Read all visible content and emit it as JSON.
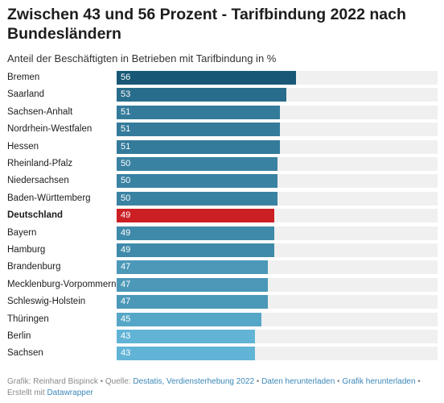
{
  "header": {
    "title": "Zwischen 43 und 56 Prozent - Tarifbindung 2022 nach Bundesländern",
    "subtitle": "Anteil der Beschäftigten in Betrieben mit Tarifbindung in %"
  },
  "footer": {
    "credit": "Grafik: Reinhard Bispinck",
    "sep1": " • ",
    "source_prefix": "Quelle: ",
    "source_link": "Destatis, Verdiensterhebung 2022",
    "sep2": " • ",
    "download_data": "Daten herunterladen",
    "sep3": " • ",
    "download_chart": "Grafik herunterladen",
    "sep4": " • ",
    "created_prefix": "Erstellt mit ",
    "created_link": "Datawrapper"
  },
  "colors": {
    "track": "#f0f0f0",
    "highlight": "#cc1f24"
  },
  "chart_data": {
    "type": "bar",
    "orientation": "horizontal",
    "title": "Zwischen 43 und 56 Prozent - Tarifbindung 2022 nach Bundesländern",
    "subtitle": "Anteil der Beschäftigten in Betrieben mit Tarifbindung in %",
    "xlim": [
      0,
      100
    ],
    "categories": [
      "Bremen",
      "Saarland",
      "Sachsen-Anhalt",
      "Nordrhein-Westfalen",
      "Hessen",
      "Rheinland-Pfalz",
      "Niedersachsen",
      "Baden-Württemberg",
      "Deutschland",
      "Bayern",
      "Hamburg",
      "Brandenburg",
      "Mecklenburg-Vorpommern",
      "Schleswig-Holstein",
      "Thüringen",
      "Berlin",
      "Sachsen"
    ],
    "values": [
      56,
      53,
      51,
      51,
      51,
      50,
      50,
      50,
      49,
      49,
      49,
      47,
      47,
      47,
      45,
      43,
      43
    ],
    "highlight": "Deutschland",
    "value_labels": "inside bar start"
  }
}
